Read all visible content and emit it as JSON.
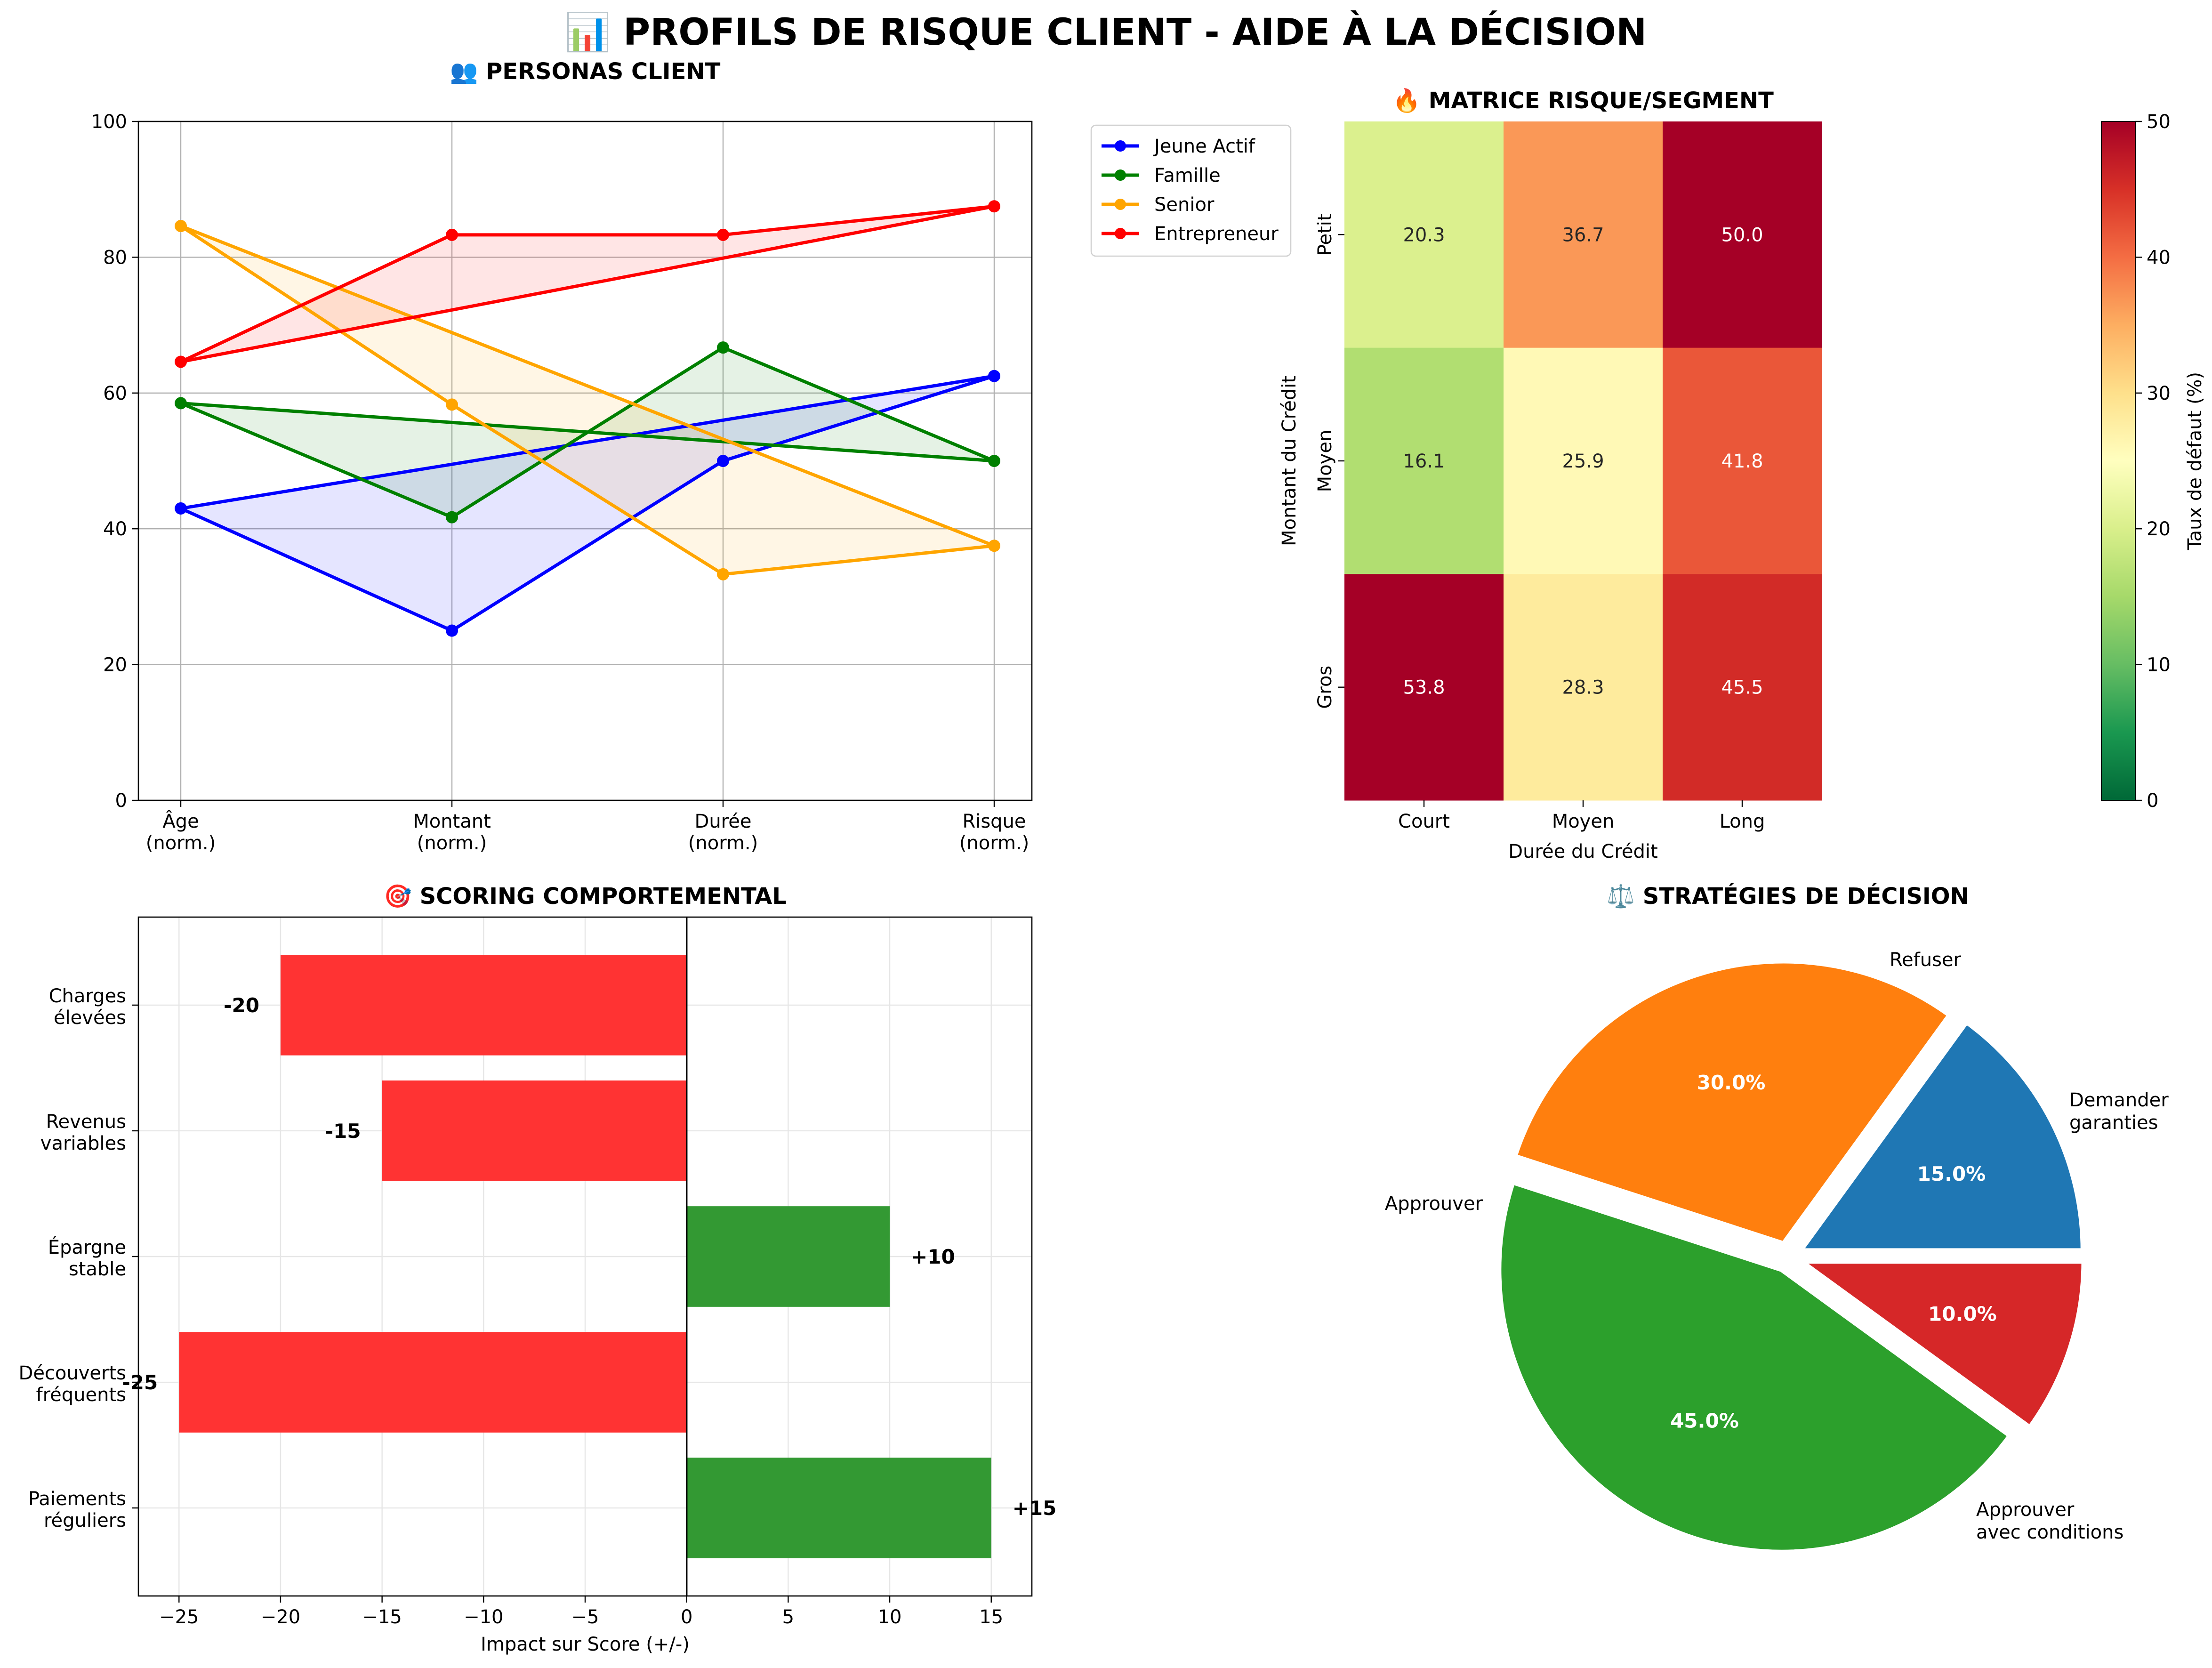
{
  "title": "📊 PROFILS DE RISQUE CLIENT - AIDE À LA DÉCISION",
  "chart_data": [
    {
      "type": "line",
      "title": "👥 PERSONAS CLIENT",
      "categories": [
        "Âge\n(norm.)",
        "Montant\n(norm.)",
        "Durée\n(norm.)",
        "Risque\n(norm.)"
      ],
      "ylim": [
        0,
        100
      ],
      "yticks": [
        0,
        20,
        40,
        60,
        80,
        100
      ],
      "grid": true,
      "closed_polygon": true,
      "legend": "outside-right",
      "series": [
        {
          "name": "Jeune Actif",
          "color": "#0000ff",
          "values": [
            43,
            25,
            50,
            62.5
          ]
        },
        {
          "name": "Famille",
          "color": "#008000",
          "values": [
            58.5,
            41.7,
            66.7,
            50
          ]
        },
        {
          "name": "Senior",
          "color": "#ffa500",
          "values": [
            84.6,
            58.3,
            33.3,
            37.5
          ]
        },
        {
          "name": "Entrepreneur",
          "color": "#ff0000",
          "values": [
            64.6,
            83.3,
            83.3,
            87.5
          ]
        }
      ]
    },
    {
      "type": "heatmap",
      "title": "🔥 MATRICE RISQUE/SEGMENT",
      "xlabel": "Durée du Crédit",
      "ylabel": "Montant du Crédit",
      "x_categories": [
        "Court",
        "Moyen",
        "Long"
      ],
      "y_categories": [
        "Petit",
        "Moyen",
        "Gros"
      ],
      "values": [
        [
          20.3,
          36.7,
          50.0
        ],
        [
          16.1,
          25.9,
          41.8
        ],
        [
          53.8,
          28.3,
          45.5
        ]
      ],
      "colormap": "RdYlGn_r",
      "vmin": 0,
      "vmax": 50,
      "colorbar_label": "Taux de défaut (%)",
      "colorbar_ticks": [
        0,
        10,
        20,
        30,
        40,
        50
      ]
    },
    {
      "type": "bar",
      "orientation": "horizontal",
      "title": "🎯 SCORING COMPORTEMENTAL",
      "xlabel": "Impact sur Score (+/-)",
      "categories": [
        "Charges\nélevées",
        "Revenus\nvariables",
        "Épargne\nstable",
        "Découverts\nfréquents",
        "Paiements\nréguliers"
      ],
      "values": [
        -20,
        -15,
        10,
        -25,
        15
      ],
      "labels": [
        "-20",
        "-15",
        "+10",
        "-25",
        "+15"
      ],
      "xlim": [
        -27,
        17
      ],
      "xticks": [
        -25,
        -20,
        -15,
        -10,
        -5,
        0,
        5,
        10,
        15
      ],
      "positive_color": "#339933",
      "negative_color": "#ff3333",
      "grid": true
    },
    {
      "type": "pie",
      "title": "⚖️ STRATÉGIES DE DÉCISION",
      "labels": [
        "Demander\ngaranties",
        "Approuver\navec conditions",
        "Approuver",
        "Refuser"
      ],
      "values": [
        15,
        30,
        45,
        10
      ],
      "value_labels": [
        "15.0%",
        "30.0%",
        "45.0%",
        "10.0%"
      ],
      "colors": [
        "#1f77b4",
        "#ff7f0e",
        "#2ca02c",
        "#d62728"
      ],
      "start_angle": 0,
      "exploded": true
    }
  ]
}
